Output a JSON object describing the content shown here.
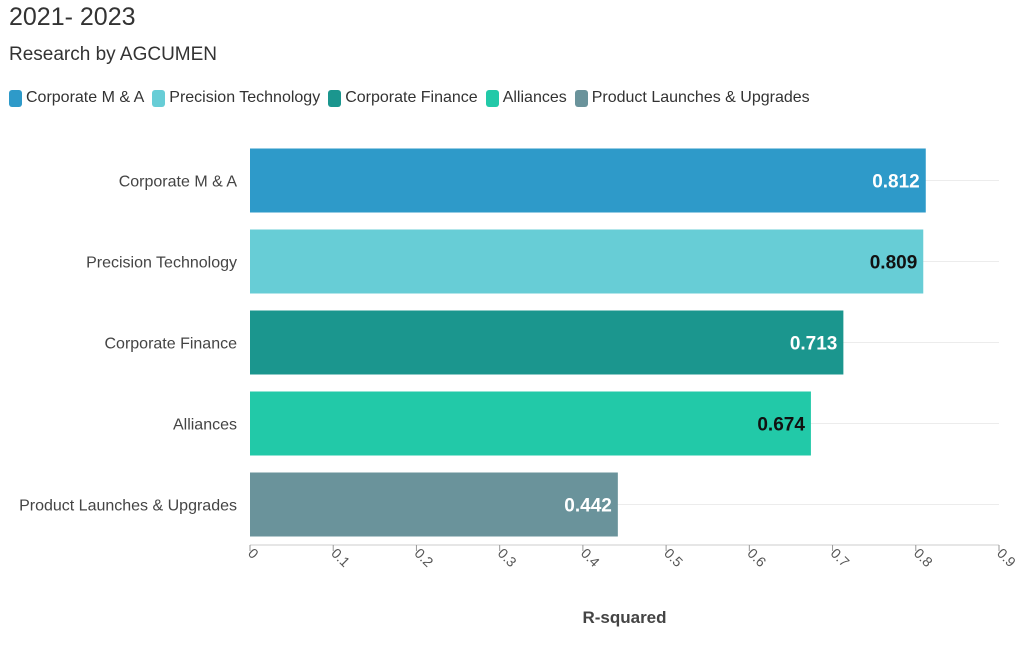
{
  "header": {
    "title": "2021- 2023",
    "subtitle": "Research by AGCUMEN"
  },
  "chart_data": {
    "type": "bar",
    "orientation": "horizontal",
    "categories": [
      "Corporate M & A",
      "Precision Technology",
      "Corporate Finance",
      "Alliances",
      "Product Launches & Upgrades"
    ],
    "values": [
      0.812,
      0.809,
      0.713,
      0.674,
      0.442
    ],
    "value_labels": [
      "0.812",
      "0.809",
      "0.713",
      "0.674",
      "0.442"
    ],
    "colors": [
      "#2e9ac9",
      "#67cdd6",
      "#1b968e",
      "#22c9a8",
      "#6a939b"
    ],
    "label_colors": [
      "#ffffff",
      "#111111",
      "#ffffff",
      "#111111",
      "#ffffff"
    ],
    "legend": [
      {
        "label": "Corporate M & A",
        "color": "#2e9ac9"
      },
      {
        "label": "Precision Technology",
        "color": "#67cdd6"
      },
      {
        "label": "Corporate Finance",
        "color": "#1b968e"
      },
      {
        "label": "Alliances",
        "color": "#22c9a8"
      },
      {
        "label": "Product Launches & Upgrades",
        "color": "#6a939b"
      }
    ],
    "x_ticks": [
      "0",
      "0.1",
      "0.2",
      "0.3",
      "0.4",
      "0.5",
      "0.6",
      "0.7",
      "0.8",
      "0.9"
    ],
    "xlim": [
      0,
      0.9
    ],
    "xlabel": "R-squared",
    "ylabel": "",
    "grid": true
  }
}
